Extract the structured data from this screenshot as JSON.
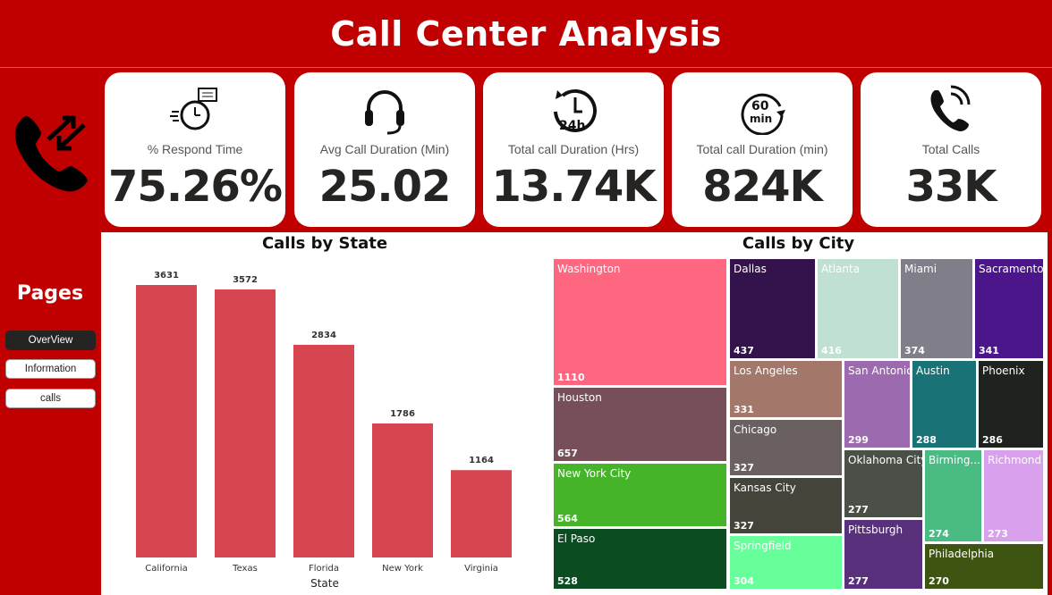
{
  "header": {
    "title": "Call Center Analysis"
  },
  "sidebar": {
    "title": "Pages",
    "buttons": [
      {
        "label": "OverView",
        "active": true
      },
      {
        "label": "Information",
        "active": false
      },
      {
        "label": "calls",
        "active": false
      }
    ]
  },
  "kpis": [
    {
      "label": "% Respond Time",
      "value": "75.26%",
      "icon": "stopwatch-icon"
    },
    {
      "label": "Avg Call Duration (Min)",
      "value": "25.02",
      "icon": "headset-icon"
    },
    {
      "label": "Total call Duration (Hrs)",
      "value": "13.74K",
      "icon": "24h-clock-icon"
    },
    {
      "label": "Total call Duration (min)",
      "value": "824K",
      "icon": "60-min-timer-icon"
    },
    {
      "label": "Total Calls",
      "value": "33K",
      "icon": "phone-ringing-icon"
    }
  ],
  "chart_data": [
    {
      "type": "bar",
      "title": "Calls by State",
      "xlabel": "State",
      "ylabel": "",
      "categories": [
        "California",
        "Texas",
        "Florida",
        "New York",
        "Virginia"
      ],
      "values": [
        3631,
        3572,
        2834,
        1786,
        1164
      ],
      "color": "#d64550",
      "grid": false
    },
    {
      "type": "treemap",
      "title": "Calls by City",
      "items": [
        {
          "label": "Washington",
          "value": 1110,
          "color": "#ff6680"
        },
        {
          "label": "Houston",
          "value": 657,
          "color": "#774f58"
        },
        {
          "label": "New York City",
          "value": 564,
          "color": "#45b428"
        },
        {
          "label": "El Paso",
          "value": 528,
          "color": "#0b4d21"
        },
        {
          "label": "Dallas",
          "value": 437,
          "color": "#34134d"
        },
        {
          "label": "Atlanta",
          "value": 416,
          "color": "#c0e0d2"
        },
        {
          "label": "Miami",
          "value": 374,
          "color": "#807e88"
        },
        {
          "label": "Sacramento",
          "value": 341,
          "color": "#4b168a"
        },
        {
          "label": "Los Angeles",
          "value": 331,
          "color": "#a3786a"
        },
        {
          "label": "Chicago",
          "value": 327,
          "color": "#6a6060"
        },
        {
          "label": "Kansas City",
          "value": 327,
          "color": "#45443a"
        },
        {
          "label": "Springfield",
          "value": 304,
          "color": "#66ff99"
        },
        {
          "label": "San Antonio",
          "value": 299,
          "color": "#9c6aae"
        },
        {
          "label": "Austin",
          "value": 288,
          "color": "#197276"
        },
        {
          "label": "Phoenix",
          "value": 286,
          "color": "#1f221f"
        },
        {
          "label": "Oklahoma City",
          "value": 277,
          "color": "#4a5048"
        },
        {
          "label": "Pittsburgh",
          "value": 277,
          "color": "#58307c"
        },
        {
          "label": "Birming...",
          "value": 274,
          "color": "#4abb82"
        },
        {
          "label": "Richmond",
          "value": 273,
          "color": "#d9a0ed"
        },
        {
          "label": "Philadelphia",
          "value": 270,
          "color": "#3e5512"
        }
      ]
    }
  ]
}
